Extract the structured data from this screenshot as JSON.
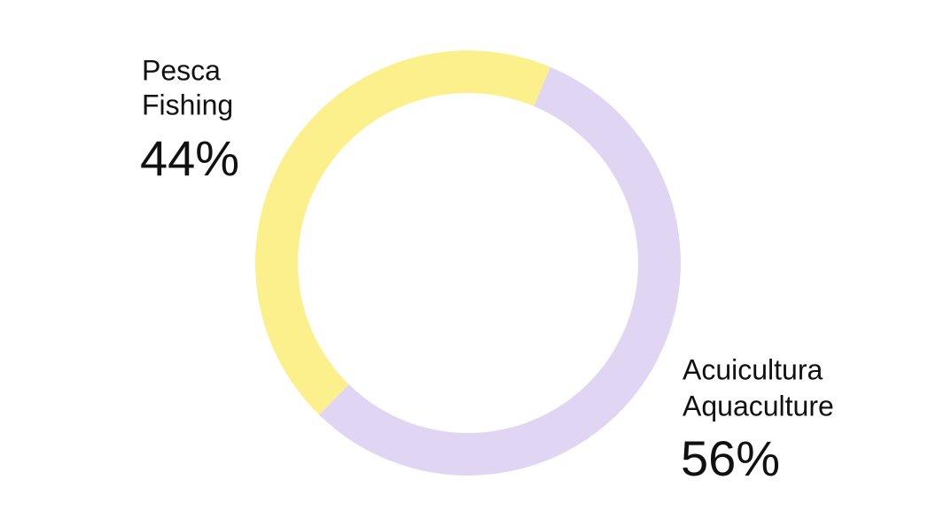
{
  "chart_data": {
    "type": "donut",
    "categories": [
      "Pesca",
      "Acuicultura"
    ],
    "categories_translated": [
      "Fishing",
      "Aquaculture"
    ],
    "values": [
      44,
      56
    ],
    "value_labels": [
      "44%",
      "56%"
    ],
    "colors": [
      "#fcf08c",
      "#e0d5f3"
    ]
  }
}
